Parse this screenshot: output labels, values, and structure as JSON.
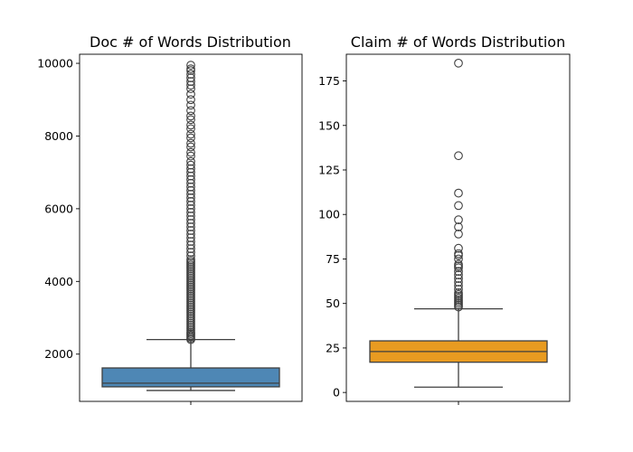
{
  "chart_data": [
    {
      "type": "box",
      "title": "Doc # of Words Distribution",
      "xlabel": "",
      "ylabel": "",
      "ylim": [
        700,
        10250
      ],
      "yticks": [
        2000,
        4000,
        6000,
        8000,
        10000
      ],
      "color": "#4e87b5",
      "box": {
        "min": 1000,
        "q1": 1100,
        "median": 1200,
        "q3": 1620,
        "max": 2400
      },
      "outliers": [
        2400,
        2440,
        2480,
        2520,
        2560,
        2600,
        2650,
        2700,
        2750,
        2800,
        2850,
        2900,
        2950,
        3000,
        3050,
        3100,
        3150,
        3200,
        3250,
        3300,
        3350,
        3400,
        3450,
        3500,
        3550,
        3600,
        3650,
        3700,
        3750,
        3800,
        3850,
        3900,
        3950,
        4000,
        4050,
        4100,
        4150,
        4200,
        4250,
        4300,
        4350,
        4400,
        4450,
        4500,
        4550,
        4600,
        4700,
        4800,
        4900,
        5000,
        5100,
        5200,
        5300,
        5400,
        5500,
        5600,
        5700,
        5800,
        5900,
        6000,
        6100,
        6200,
        6300,
        6400,
        6500,
        6600,
        6700,
        6800,
        6900,
        7000,
        7100,
        7200,
        7300,
        7450,
        7550,
        7700,
        7800,
        7950,
        8050,
        8200,
        8300,
        8450,
        8550,
        8700,
        8850,
        9000,
        9150,
        9300,
        9400,
        9500,
        9600,
        9700,
        9800,
        9850,
        9950
      ]
    },
    {
      "type": "box",
      "title": "Claim # of Words Distribution",
      "xlabel": "",
      "ylabel": "",
      "ylim": [
        -5,
        190
      ],
      "yticks": [
        0,
        25,
        50,
        75,
        100,
        125,
        150,
        175
      ],
      "color": "#e89b21",
      "box": {
        "min": 3,
        "q1": 17,
        "median": 23,
        "q3": 29,
        "max": 47
      },
      "outliers": [
        48,
        49,
        50,
        51,
        52,
        53,
        54,
        55,
        56,
        58,
        60,
        62,
        64,
        66,
        68,
        70,
        71,
        72,
        75,
        77,
        78,
        81,
        89,
        93,
        97,
        105,
        112,
        133,
        185
      ]
    }
  ]
}
